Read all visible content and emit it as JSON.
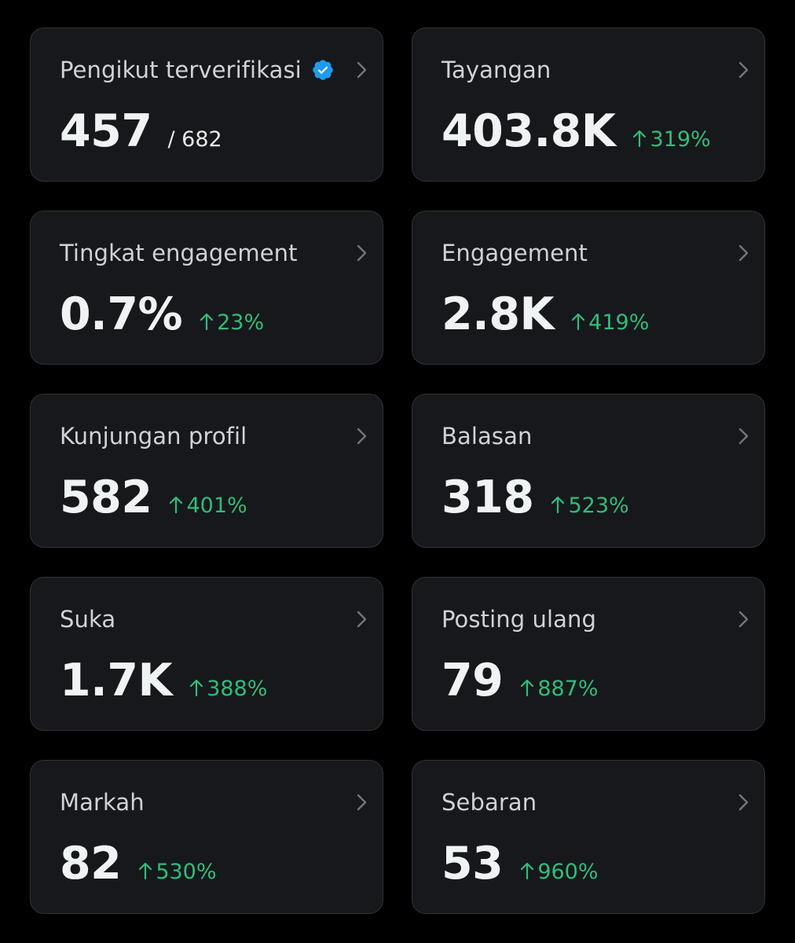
{
  "colors": {
    "background": "#000000",
    "card": "#16181c",
    "card_border": "#2f3336",
    "title_text": "#cfd3d7",
    "value_text": "#eff3f4",
    "positive": "#2fbd7a",
    "verified_badge": "#1d9bf0"
  },
  "cards": [
    {
      "title": "Pengikut terverifikasi",
      "value": "457",
      "sub": "/ 682",
      "icon": "verified-badge-icon"
    },
    {
      "title": "Tayangan",
      "value": "403.8K",
      "change": "319%"
    },
    {
      "title": "Tingkat engagement",
      "value": "0.7%",
      "change": "23%"
    },
    {
      "title": "Engagement",
      "value": "2.8K",
      "change": "419%"
    },
    {
      "title": "Kunjungan profil",
      "value": "582",
      "change": "401%"
    },
    {
      "title": "Balasan",
      "value": "318",
      "change": "523%"
    },
    {
      "title": "Suka",
      "value": "1.7K",
      "change": "388%"
    },
    {
      "title": "Posting ulang",
      "value": "79",
      "change": "887%"
    },
    {
      "title": "Markah",
      "value": "82",
      "change": "530%"
    },
    {
      "title": "Sebaran",
      "value": "53",
      "change": "960%"
    }
  ]
}
